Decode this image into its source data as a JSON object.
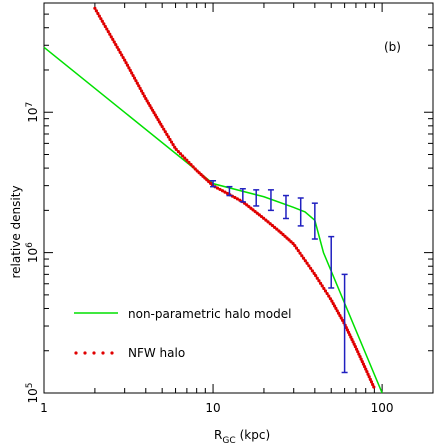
{
  "chart_data": {
    "type": "line",
    "panel_label": "(b)",
    "xlabel_main": "R",
    "xlabel_sub": "GC",
    "xlabel_unit": "(kpc)",
    "ylabel": "relative density",
    "x_scale": "log",
    "y_scale": "log",
    "xlim": [
      1,
      200
    ],
    "ylim": [
      100000,
      60000000
    ],
    "x_ticks": [
      {
        "value": 1,
        "label": "1"
      },
      {
        "value": 10,
        "label": "10"
      },
      {
        "value": 100,
        "label": "100"
      }
    ],
    "y_ticks": [
      {
        "value": 100000,
        "base": "10",
        "exp": "5"
      },
      {
        "value": 1000000,
        "base": "10",
        "exp": "6"
      },
      {
        "value": 10000000,
        "base": "10",
        "exp": "7"
      }
    ],
    "grid": false,
    "legend_position": "bottom-left",
    "series": [
      {
        "name": "non-parametric halo model",
        "style": "solid",
        "color": "#00e000",
        "x": [
          1,
          10,
          20,
          30,
          35,
          40,
          45,
          100
        ],
        "y": [
          29000000,
          3100000,
          2500000,
          2100000,
          1950000,
          1700000,
          1000000,
          100000
        ]
      },
      {
        "name": "NFW halo",
        "style": "dotted",
        "color": "#e00000",
        "x": [
          2,
          3,
          4,
          5,
          6,
          8,
          10,
          15,
          20,
          25,
          30,
          40,
          50,
          60,
          70,
          80,
          90
        ],
        "y": [
          55000000,
          23500000,
          12500000,
          7900000,
          5500000,
          3850000,
          3000000,
          2300000,
          1750000,
          1400000,
          1150000,
          700000,
          460000,
          310000,
          210000,
          148000,
          108000
        ]
      }
    ],
    "error_bars": {
      "color": "#2020c0",
      "points": [
        {
          "x": 10,
          "y": 3100000,
          "low": 2950000,
          "high": 3250000
        },
        {
          "x": 12.5,
          "y": 2750000,
          "low": 2550000,
          "high": 2950000
        },
        {
          "x": 15,
          "y": 2600000,
          "low": 2300000,
          "high": 2850000
        },
        {
          "x": 18,
          "y": 2500000,
          "low": 2150000,
          "high": 2800000
        },
        {
          "x": 22,
          "y": 2400000,
          "low": 2000000,
          "high": 2800000
        },
        {
          "x": 27,
          "y": 2150000,
          "low": 1750000,
          "high": 2550000
        },
        {
          "x": 33,
          "y": 1950000,
          "low": 1550000,
          "high": 2450000
        },
        {
          "x": 40,
          "y": 1700000,
          "low": 1250000,
          "high": 2250000
        },
        {
          "x": 50,
          "y": 880000,
          "low": 560000,
          "high": 1300000
        },
        {
          "x": 60,
          "y": 320000,
          "low": 140000,
          "high": 700000
        }
      ]
    }
  }
}
